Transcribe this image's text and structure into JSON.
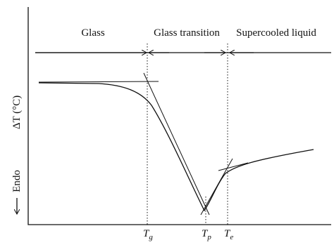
{
  "regions": [
    "Glass",
    "Glass transition",
    "Supercooled liquid"
  ],
  "y_axis": {
    "label": "ΔT (°C)",
    "direction": "Endo"
  },
  "temperatures": [
    {
      "symbol": "T",
      "subscript": "g"
    },
    {
      "symbol": "T",
      "subscript": "p"
    },
    {
      "symbol": "T",
      "subscript": "e"
    }
  ]
}
